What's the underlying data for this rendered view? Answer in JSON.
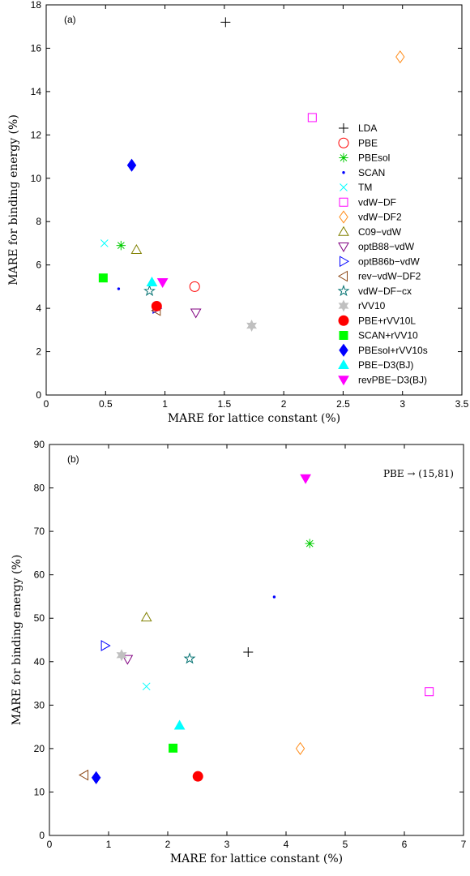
{
  "chart_data": [
    {
      "type": "scatter",
      "panel_label": "(a)",
      "xlabel": "MARE for lattice constant (%)",
      "ylabel": "MARE for binding energy (%)",
      "xlim": [
        0,
        3.5
      ],
      "ylim": [
        0,
        18
      ],
      "xticks": [
        "0",
        "0.5",
        "1",
        "1.5",
        "2",
        "2.5",
        "3",
        "3.5"
      ],
      "yticks": [
        "0",
        "2",
        "4",
        "6",
        "8",
        "10",
        "12",
        "14",
        "16",
        "18"
      ],
      "legend_position": "right",
      "series": [
        {
          "name": "LDA",
          "marker": "plus",
          "color": "#000000",
          "x": 1.51,
          "y": 17.2
        },
        {
          "name": "PBE",
          "marker": "circle-open",
          "color": "#ff0000",
          "x": 1.25,
          "y": 5.0
        },
        {
          "name": "PBEsol",
          "marker": "asterisk",
          "color": "#00cc00",
          "x": 0.63,
          "y": 6.9
        },
        {
          "name": "SCAN",
          "marker": "dot",
          "color": "#0000ff",
          "x": 0.61,
          "y": 4.9
        },
        {
          "name": "TM",
          "marker": "cross",
          "color": "#00ffff",
          "x": 0.49,
          "y": 7.0
        },
        {
          "name": "vdW−DF",
          "marker": "square-open",
          "color": "#ff00ff",
          "x": 2.24,
          "y": 12.8
        },
        {
          "name": "vdW−DF2",
          "marker": "diamond-open",
          "color": "#ff8c1a",
          "x": 2.98,
          "y": 15.6
        },
        {
          "name": "C09−vdW",
          "marker": "triangle-up-open",
          "color": "#808000",
          "x": 0.76,
          "y": 6.7
        },
        {
          "name": "optB88−vdW",
          "marker": "triangle-down-open",
          "color": "#800080",
          "x": 1.26,
          "y": 3.8
        },
        {
          "name": "optB86b−vdW",
          "marker": "triangle-right-open",
          "color": "#0000ff",
          "x": 0.93,
          "y": 4.0
        },
        {
          "name": "rev−vdW−DF2",
          "marker": "triangle-left-open",
          "color": "#8b4513",
          "x": 0.93,
          "y": 3.9
        },
        {
          "name": "vdW−DF−cx",
          "marker": "star-open",
          "color": "#007070",
          "x": 0.87,
          "y": 4.8
        },
        {
          "name": "rVV10",
          "marker": "hexagram",
          "color": "#c0c0c0",
          "x": 1.73,
          "y": 3.2
        },
        {
          "name": "PBE+rVV10L",
          "marker": "circle-filled",
          "color": "#ff0000",
          "x": 0.93,
          "y": 4.1
        },
        {
          "name": "SCAN+rVV10",
          "marker": "square-filled",
          "color": "#00ff00",
          "x": 0.48,
          "y": 5.4
        },
        {
          "name": "PBEsol+rVV10s",
          "marker": "diamond-filled",
          "color": "#0000ff",
          "x": 0.72,
          "y": 10.6
        },
        {
          "name": "PBE−D3(BJ)",
          "marker": "triangle-up-filled",
          "color": "#00ffff",
          "x": 0.89,
          "y": 5.2
        },
        {
          "name": "revPBE−D3(BJ)",
          "marker": "triangle-down-filled",
          "color": "#ff00ff",
          "x": 0.98,
          "y": 5.2
        }
      ]
    },
    {
      "type": "scatter",
      "panel_label": "(b)",
      "annotation": "PBE → (15,81)",
      "xlabel": "MARE for lattice constant (%)",
      "ylabel": "MARE for binding energy (%)",
      "xlim": [
        0,
        7
      ],
      "ylim": [
        0,
        90
      ],
      "xticks": [
        "0",
        "1",
        "2",
        "3",
        "4",
        "5",
        "6",
        "7"
      ],
      "yticks": [
        "0",
        "10",
        "20",
        "30",
        "40",
        "50",
        "60",
        "70",
        "80",
        "90"
      ],
      "series": [
        {
          "name": "LDA",
          "marker": "plus",
          "color": "#000000",
          "x": 3.36,
          "y": 42.2
        },
        {
          "name": "PBEsol",
          "marker": "asterisk",
          "color": "#00cc00",
          "x": 4.4,
          "y": 67.2
        },
        {
          "name": "SCAN",
          "marker": "dot",
          "color": "#0000ff",
          "x": 3.8,
          "y": 54.9
        },
        {
          "name": "TM",
          "marker": "cross",
          "color": "#00ffff",
          "x": 1.64,
          "y": 34.3
        },
        {
          "name": "vdW−DF",
          "marker": "square-open",
          "color": "#ff00ff",
          "x": 6.42,
          "y": 33.1
        },
        {
          "name": "vdW−DF2",
          "marker": "diamond-open",
          "color": "#ff8c1a",
          "x": 4.24,
          "y": 20.0
        },
        {
          "name": "C09−vdW",
          "marker": "triangle-up-open",
          "color": "#808000",
          "x": 1.64,
          "y": 50.2
        },
        {
          "name": "optB88−vdW",
          "marker": "triangle-down-open",
          "color": "#800080",
          "x": 1.32,
          "y": 40.6
        },
        {
          "name": "optB86b−vdW",
          "marker": "triangle-right-open",
          "color": "#0000ff",
          "x": 0.94,
          "y": 43.7
        },
        {
          "name": "rev−vdW−DF2",
          "marker": "triangle-left-open",
          "color": "#8b4513",
          "x": 0.59,
          "y": 13.9
        },
        {
          "name": "vdW−DF−cx",
          "marker": "star-open",
          "color": "#007070",
          "x": 2.37,
          "y": 40.7
        },
        {
          "name": "rVV10",
          "marker": "hexagram",
          "color": "#c0c0c0",
          "x": 1.22,
          "y": 41.5
        },
        {
          "name": "PBE+rVV10L",
          "marker": "circle-filled",
          "color": "#ff0000",
          "x": 2.51,
          "y": 13.6
        },
        {
          "name": "SCAN+rVV10",
          "marker": "square-filled",
          "color": "#00ff00",
          "x": 2.09,
          "y": 20.1
        },
        {
          "name": "PBEsol+rVV10s",
          "marker": "diamond-filled",
          "color": "#0000ff",
          "x": 0.79,
          "y": 13.3
        },
        {
          "name": "PBE−D3(BJ)",
          "marker": "triangle-up-filled",
          "color": "#00ffff",
          "x": 2.2,
          "y": 25.3
        },
        {
          "name": "revPBE−D3(BJ)",
          "marker": "triangle-down-filled",
          "color": "#ff00ff",
          "x": 4.33,
          "y": 82.2
        }
      ]
    }
  ]
}
